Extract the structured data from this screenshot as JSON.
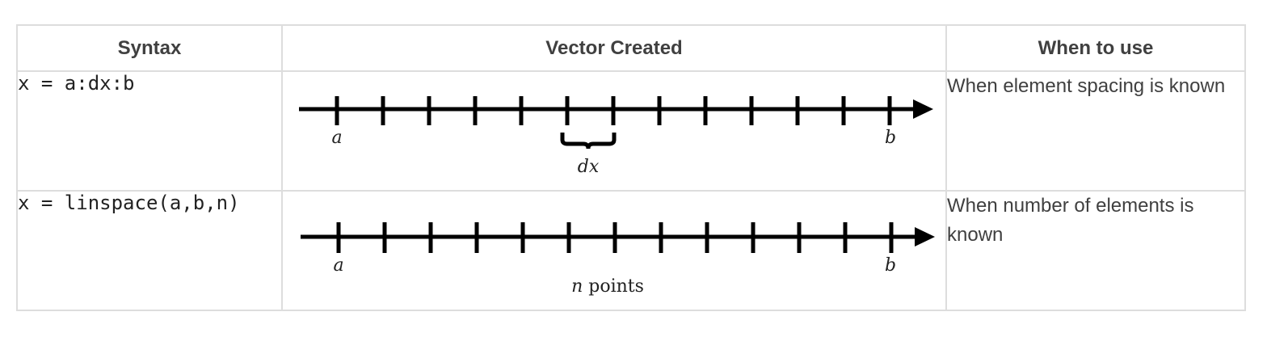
{
  "table": {
    "headers": [
      "Syntax",
      "Vector Created",
      "When to use"
    ],
    "rows": [
      {
        "syntax": "x = a:dx:b",
        "diagram": {
          "start_label": "a",
          "end_label": "b",
          "spacing_label": "dx",
          "tick_count": 13
        },
        "when": "When element spacing is known"
      },
      {
        "syntax": "x = linspace(a,b,n)",
        "diagram": {
          "start_label": "a",
          "end_label": "b",
          "count_label_var": "n",
          "count_label_text": " points",
          "tick_count": 13
        },
        "when": "When number of elements is known"
      }
    ]
  }
}
